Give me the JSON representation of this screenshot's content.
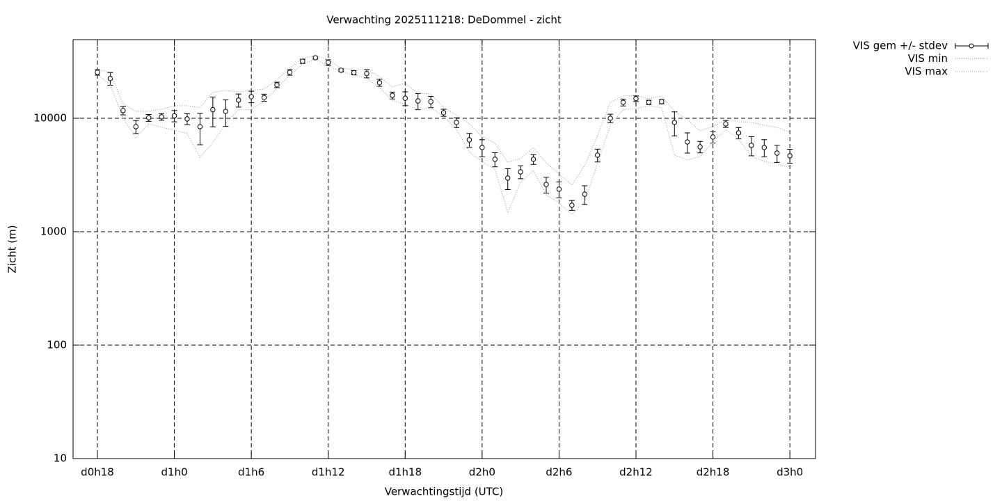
{
  "chart_data": {
    "type": "errorbar-line",
    "title": "Verwachting 2025111218: DeDommel - zicht",
    "x_label": "Verwachtingstijd (UTC)",
    "y_label": "Zicht (m)",
    "x": [
      0,
      1,
      2,
      3,
      4,
      5,
      6,
      7,
      8,
      9,
      10,
      11,
      12,
      13,
      14,
      15,
      16,
      17,
      18,
      19,
      20,
      21,
      22,
      23,
      24,
      25,
      26,
      27,
      28,
      29,
      30,
      31,
      32,
      33,
      34,
      35,
      36,
      37,
      38,
      39,
      40,
      41,
      42,
      43,
      44,
      45,
      46,
      47,
      48,
      49,
      50,
      51,
      52,
      53,
      54
    ],
    "xlim": [
      -1.9,
      56
    ],
    "xticks": [
      {
        "value": 0,
        "label": "d0h18"
      },
      {
        "value": 6,
        "label": "d1h0"
      },
      {
        "value": 12,
        "label": "d1h6"
      },
      {
        "value": 18,
        "label": "d1h12"
      },
      {
        "value": 24,
        "label": "d1h18"
      },
      {
        "value": 30,
        "label": "d2h0"
      },
      {
        "value": 36,
        "label": "d2h6"
      },
      {
        "value": 42,
        "label": "d2h12"
      },
      {
        "value": 48,
        "label": "d2h18"
      },
      {
        "value": 54,
        "label": "d3h0"
      }
    ],
    "ylim": [
      10,
      49300
    ],
    "yticks": [
      10,
      100,
      1000,
      10000
    ],
    "log_y": true,
    "grid": true,
    "legend": "outside-top-right",
    "series": [
      {
        "name": "VIS gem +/- stdev",
        "color": "#000000",
        "values": [
          25400,
          22400,
          11700,
          8440,
          10100,
          10300,
          10500,
          9870,
          8440,
          11900,
          11500,
          14450,
          15500,
          15200,
          19700,
          25400,
          31800,
          34200,
          31000,
          26500,
          25200,
          24800,
          20600,
          15900,
          15000,
          14200,
          14000,
          11200,
          9190,
          6450,
          5520,
          4350,
          2970,
          3370,
          4350,
          2610,
          2370,
          1710,
          2140,
          4730,
          10000,
          13800,
          14900,
          13800,
          14000,
          9190,
          6180,
          5600,
          6830,
          8930,
          7430,
          5770,
          5520,
          4930,
          4670
        ],
        "errors": [
          1400,
          2900,
          1000,
          1100,
          700,
          700,
          1200,
          1100,
          2600,
          3500,
          3000,
          1900,
          1800,
          1100,
          1100,
          1450,
          1400,
          1000,
          1800,
          750,
          1100,
          2100,
          1450,
          1100,
          2100,
          2300,
          1600,
          800,
          900,
          900,
          950,
          620,
          620,
          440,
          430,
          420,
          380,
          170,
          400,
          610,
          850,
          970,
          850,
          600,
          600,
          2200,
          1250,
          650,
          790,
          630,
          860,
          1100,
          950,
          850,
          660
        ]
      },
      {
        "name": "VIS min",
        "color": "#999999",
        "values": [
          24400,
          19700,
          10000,
          6730,
          8930,
          8320,
          7870,
          7330,
          4530,
          6100,
          8930,
          11900,
          11900,
          14200,
          18400,
          24000,
          30100,
          33200,
          28900,
          25700,
          24000,
          22700,
          18600,
          14400,
          13300,
          11900,
          12400,
          10400,
          7980,
          5080,
          4110,
          3570,
          1470,
          2730,
          3470,
          2110,
          1790,
          1420,
          1840,
          3990,
          8690,
          11900,
          12200,
          12900,
          12400,
          4730,
          4290,
          4600,
          6180,
          7980,
          6550,
          4600,
          4170,
          3940,
          3720
        ]
      },
      {
        "name": "VIS max",
        "color": "#999999",
        "values": [
          26900,
          25400,
          13300,
          11500,
          11500,
          12000,
          12900,
          12900,
          12400,
          16900,
          17600,
          17100,
          17600,
          18100,
          21800,
          27700,
          33700,
          35700,
          32700,
          27700,
          26900,
          26900,
          23300,
          18900,
          20300,
          16600,
          16400,
          12400,
          10700,
          8930,
          6920,
          6010,
          4110,
          4410,
          5520,
          4050,
          3230,
          2580,
          3830,
          7030,
          13800,
          15700,
          15900,
          14900,
          15700,
          11500,
          9730,
          7760,
          8440,
          9730,
          9310,
          9190,
          8690,
          8320,
          7540
        ]
      }
    ]
  }
}
